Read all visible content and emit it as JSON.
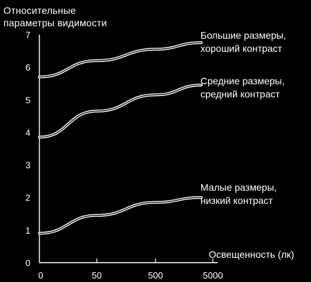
{
  "chart_data": {
    "type": "line",
    "ylabel_lines": [
      "Относительные",
      "параметры видимости"
    ],
    "xlabel": "Освещенность (лк)",
    "x_ticks": [
      "0",
      "50",
      "500",
      "5000"
    ],
    "y_ticks": [
      "0",
      "1",
      "2",
      "3",
      "4",
      "5",
      "6",
      "7"
    ],
    "ylim": [
      0,
      7
    ],
    "x_scale": "ordinal-log",
    "grid": false,
    "series": [
      {
        "label_lines": [
          "Большие размеры,",
          "хороший контраст"
        ],
        "x": [
          0,
          50,
          500,
          3000
        ],
        "values": [
          5.7,
          6.2,
          6.55,
          6.75
        ]
      },
      {
        "label_lines": [
          "Средние размеры,",
          "средний контраст"
        ],
        "x": [
          0,
          50,
          500,
          3000
        ],
        "values": [
          3.85,
          4.65,
          5.15,
          5.45
        ]
      },
      {
        "label_lines": [
          "Малые размеры,",
          "низкий контраст"
        ],
        "x": [
          0,
          50,
          500,
          3000
        ],
        "values": [
          0.9,
          1.45,
          1.85,
          2.0
        ]
      }
    ],
    "colors": {
      "background": "#000000",
      "foreground": "#ffffff"
    }
  }
}
